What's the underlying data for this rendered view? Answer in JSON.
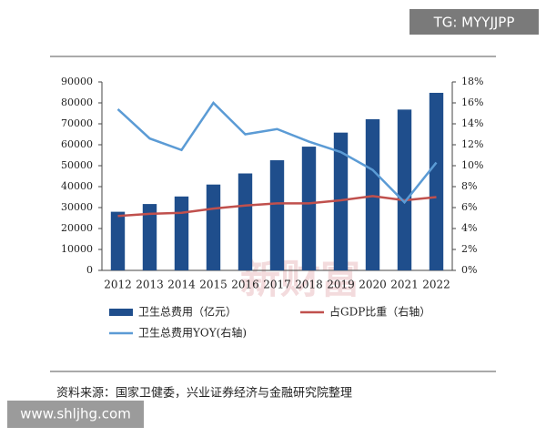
{
  "header_tag": "TG: MYYJJPP",
  "source": "资料来源：国家卫健委，兴业证券经济与金融研究院整理",
  "watermarks": [
    "新财富",
    "www.shljhg.com"
  ],
  "chart_data": {
    "type": "bar",
    "categories": [
      "2012",
      "2013",
      "2014",
      "2015",
      "2016",
      "2017",
      "2018",
      "2019",
      "2020",
      "2021",
      "2022"
    ],
    "series": [
      {
        "name": "卫生总费用（亿元）",
        "type": "bar",
        "color": "#1f4e8c",
        "values": [
          28000,
          31700,
          35300,
          41000,
          46300,
          52600,
          59100,
          65800,
          72200,
          76800,
          84800
        ]
      },
      {
        "name": "占GDP比重（右轴）",
        "type": "line",
        "axis": "y2",
        "color": "#c0504d",
        "values": [
          5.2,
          5.4,
          5.5,
          5.9,
          6.2,
          6.4,
          6.4,
          6.7,
          7.1,
          6.7,
          7.0
        ]
      },
      {
        "name": "卫生总费用YOY(右轴)",
        "type": "line",
        "axis": "y2",
        "color": "#5b9bd5",
        "values": [
          15.4,
          12.6,
          11.5,
          16.0,
          13.0,
          13.5,
          12.3,
          11.3,
          9.6,
          6.5,
          10.3
        ]
      }
    ],
    "ylim": [
      0,
      90000
    ],
    "yticks": [
      0,
      10000,
      20000,
      30000,
      40000,
      50000,
      60000,
      70000,
      80000,
      90000
    ],
    "y2lim": [
      0,
      18
    ],
    "y2ticks": [
      {
        "value": 0,
        "label": "0%"
      },
      {
        "value": 2,
        "label": "2%"
      },
      {
        "value": 4,
        "label": "4%"
      },
      {
        "value": 6,
        "label": "6%"
      },
      {
        "value": 8,
        "label": "8%"
      },
      {
        "value": 10,
        "label": "10%"
      },
      {
        "value": 12,
        "label": "12%"
      },
      {
        "value": 14,
        "label": "14%"
      },
      {
        "value": 16,
        "label": "16%"
      },
      {
        "value": 18,
        "label": "18%"
      }
    ]
  }
}
